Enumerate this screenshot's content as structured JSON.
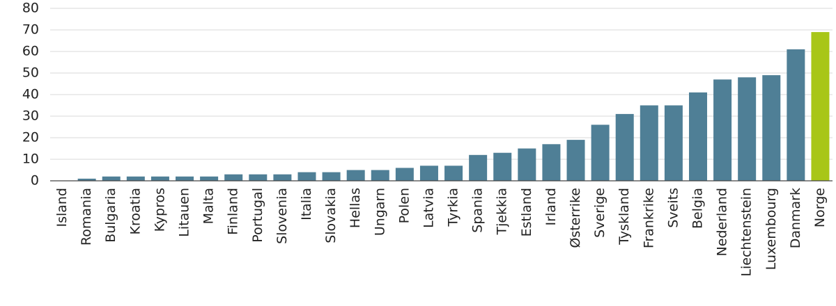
{
  "chart_data": {
    "type": "bar",
    "categories": [
      "Island",
      "Romania",
      "Bulgaria",
      "Kroatia",
      "Kypros",
      "Litauen",
      "Malta",
      "Finland",
      "Portugal",
      "Slovenia",
      "Italia",
      "Slovakia",
      "Hellas",
      "Ungarn",
      "Polen",
      "Latvia",
      "Tyrkia",
      "Spania",
      "Tjekkia",
      "Estland",
      "Irland",
      "Østerrike",
      "Sverige",
      "Tyskland",
      "Frankrike",
      "Sveits",
      "Belgia",
      "Nederland",
      "Liechtenstein",
      "Luxembourg",
      "Danmark",
      "Norge"
    ],
    "values": [
      0,
      1,
      2,
      2,
      2,
      2,
      2,
      3,
      3,
      3,
      4,
      4,
      5,
      5,
      6,
      7,
      7,
      12,
      13,
      15,
      17,
      19,
      26,
      31,
      35,
      35,
      41,
      47,
      48,
      49,
      61,
      69
    ],
    "colors": [
      "#4f7f96",
      "#4f7f96",
      "#4f7f96",
      "#4f7f96",
      "#4f7f96",
      "#4f7f96",
      "#4f7f96",
      "#4f7f96",
      "#4f7f96",
      "#4f7f96",
      "#4f7f96",
      "#4f7f96",
      "#4f7f96",
      "#4f7f96",
      "#4f7f96",
      "#4f7f96",
      "#4f7f96",
      "#4f7f96",
      "#4f7f96",
      "#4f7f96",
      "#4f7f96",
      "#4f7f96",
      "#4f7f96",
      "#4f7f96",
      "#4f7f96",
      "#4f7f96",
      "#4f7f96",
      "#4f7f96",
      "#4f7f96",
      "#4f7f96",
      "#4f7f96",
      "#a8c617"
    ],
    "ylim": [
      0,
      80
    ],
    "yticks": [
      0,
      10,
      20,
      30,
      40,
      50,
      60,
      70,
      80
    ],
    "grid": true
  }
}
